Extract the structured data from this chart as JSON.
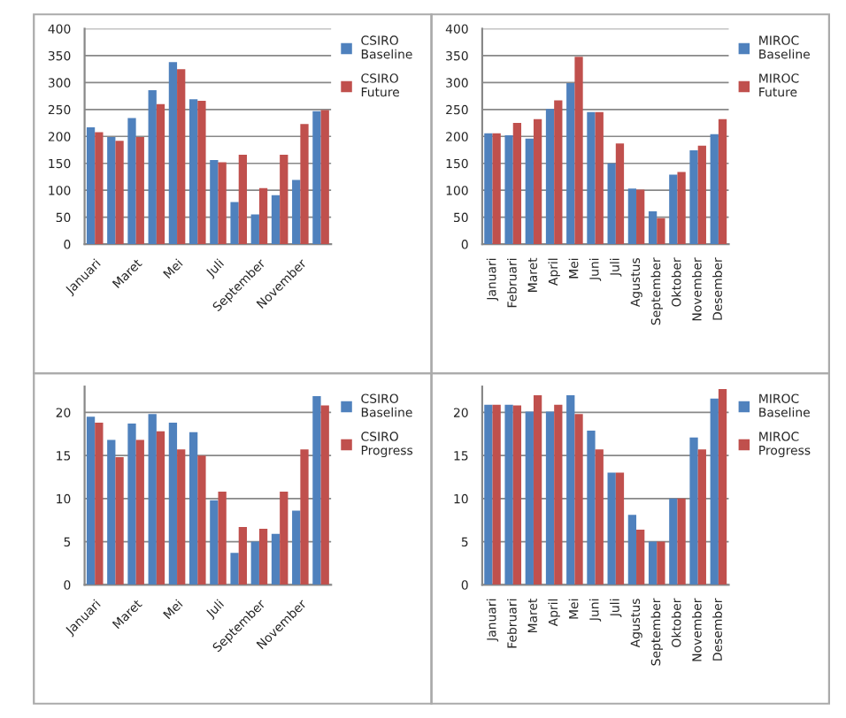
{
  "chart_data": [
    {
      "type": "bar",
      "categories": [
        "Januari",
        null,
        "Maret",
        null,
        "Mei",
        null,
        "Juli",
        null,
        "September",
        null,
        "November",
        null
      ],
      "ylim": [
        0,
        400
      ],
      "yticks": [
        0,
        50,
        100,
        150,
        200,
        250,
        300,
        350,
        400
      ],
      "grid": "y",
      "legend": "top right",
      "series": [
        {
          "name": "CSIRO Baseline",
          "color": "#4f81bd",
          "values": [
            217,
            199,
            234,
            286,
            338,
            269,
            156,
            78,
            55,
            91,
            119,
            247
          ]
        },
        {
          "name": "CSIRO Future",
          "color": "#c0504d",
          "values": [
            208,
            192,
            199,
            260,
            325,
            266,
            152,
            166,
            104,
            166,
            223,
            249
          ]
        }
      ]
    },
    {
      "type": "bar",
      "categories": [
        "Januari",
        "Februari",
        "Maret",
        "April",
        "Mei",
        "Juni",
        "Juli",
        "Agustus",
        "September",
        "Oktober",
        "November",
        "Desember"
      ],
      "ylim": [
        0,
        400
      ],
      "yticks": [
        0,
        50,
        100,
        150,
        200,
        250,
        300,
        350,
        400
      ],
      "grid": "y",
      "legend": "top right",
      "series": [
        {
          "name": "MIROC Baseline",
          "color": "#4f81bd",
          "values": [
            206,
            202,
            196,
            251,
            299,
            245,
            150,
            103,
            61,
            129,
            174,
            204
          ]
        },
        {
          "name": "MIROC Future",
          "color": "#c0504d",
          "values": [
            206,
            225,
            232,
            267,
            348,
            245,
            187,
            101,
            48,
            134,
            183,
            232
          ]
        }
      ]
    },
    {
      "type": "bar",
      "categories": [
        "Januari",
        null,
        "Maret",
        null,
        "Mei",
        null,
        "Juli",
        null,
        "September",
        null,
        "November",
        null
      ],
      "ylim": [
        0,
        23
      ],
      "yticks": [
        0,
        5,
        10,
        15,
        20
      ],
      "grid": "y",
      "legend": "top right",
      "series": [
        {
          "name": "CSIRO Baseline",
          "color": "#4f81bd",
          "values": [
            19.5,
            16.8,
            18.7,
            19.8,
            18.8,
            17.7,
            9.8,
            3.7,
            5,
            5.9,
            8.6,
            21.9
          ]
        },
        {
          "name": "CSIRO Progress",
          "color": "#c0504d",
          "values": [
            18.8,
            14.8,
            16.8,
            17.8,
            15.7,
            15,
            10.8,
            6.7,
            6.5,
            10.8,
            15.7,
            20.8
          ]
        }
      ]
    },
    {
      "type": "bar",
      "categories": [
        "Januari",
        "Februari",
        "Maret",
        "April",
        "Mei",
        "Juni",
        "Juli",
        "Agustus",
        "September",
        "Oktober",
        "November",
        "Desember"
      ],
      "ylim": [
        0,
        23
      ],
      "yticks": [
        0,
        5,
        10,
        15,
        20
      ],
      "grid": "y",
      "legend": "top right",
      "series": [
        {
          "name": "MIROC Baseline",
          "color": "#4f81bd",
          "values": [
            20.9,
            20.9,
            20.1,
            20.1,
            22,
            17.9,
            13,
            8.1,
            5,
            10,
            17.1,
            21.6
          ]
        },
        {
          "name": "MIROC Progress",
          "color": "#c0504d",
          "values": [
            20.9,
            20.8,
            22,
            20.9,
            19.8,
            15.7,
            13,
            6.4,
            5,
            10,
            15.7,
            22.7
          ]
        }
      ]
    }
  ]
}
